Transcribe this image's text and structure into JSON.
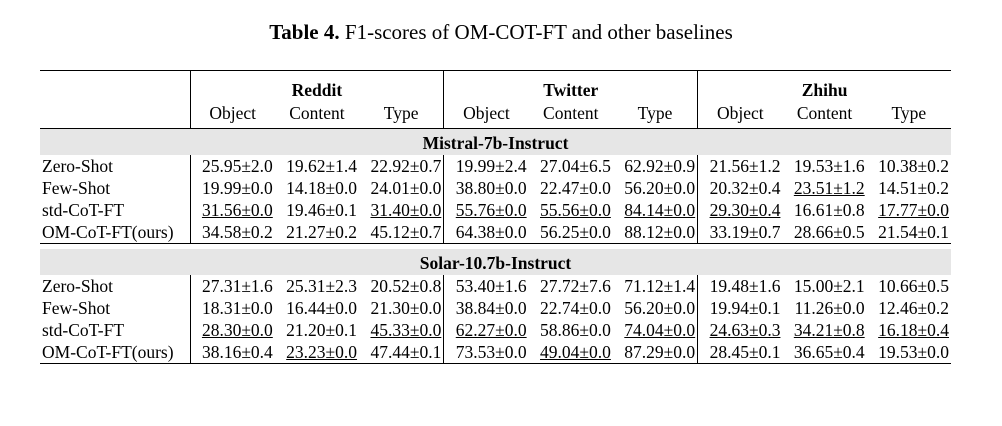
{
  "caption": {
    "label": "Table 4.",
    "text": "F1-scores of OM-COT-FT and other baselines"
  },
  "datasets": [
    "Reddit",
    "Twitter",
    "Zhihu"
  ],
  "metrics": [
    "Object",
    "Content",
    "Type"
  ],
  "sections": [
    {
      "title": "Mistral-7b-Instruct",
      "rows": [
        {
          "method": "Zero-Shot",
          "cells": [
            {
              "v": "25.95±2.0"
            },
            {
              "v": "19.62±1.4"
            },
            {
              "v": "22.92±0.7"
            },
            {
              "v": "19.99±2.4"
            },
            {
              "v": "27.04±6.5"
            },
            {
              "v": "62.92±0.9"
            },
            {
              "v": "21.56±1.2"
            },
            {
              "v": "19.53±1.6"
            },
            {
              "v": "10.38±0.2"
            }
          ]
        },
        {
          "method": "Few-Shot",
          "cells": [
            {
              "v": "19.99±0.0"
            },
            {
              "v": "14.18±0.0"
            },
            {
              "v": "24.01±0.0"
            },
            {
              "v": "38.80±0.0"
            },
            {
              "v": "22.47±0.0"
            },
            {
              "v": "56.20±0.0"
            },
            {
              "v": "20.32±0.4"
            },
            {
              "v": "23.51±1.2",
              "s": "u"
            },
            {
              "v": "14.51±0.2"
            }
          ]
        },
        {
          "method": "std-CoT-FT",
          "cells": [
            {
              "v": "31.56±0.0",
              "s": "u"
            },
            {
              "v": "19.46±0.1"
            },
            {
              "v": "31.40±0.0",
              "s": "u"
            },
            {
              "v": "55.76±0.0",
              "s": "u"
            },
            {
              "v": "55.56±0.0",
              "s": "u"
            },
            {
              "v": "84.14±0.0",
              "s": "u"
            },
            {
              "v": "29.30±0.4",
              "s": "u"
            },
            {
              "v": "16.61±0.8"
            },
            {
              "v": "17.77±0.0",
              "s": "u"
            }
          ]
        },
        {
          "method": "OM-CoT-FT(ours)",
          "cells": [
            {
              "v": "34.58±0.2",
              "s": "b"
            },
            {
              "v": "21.27±0.2",
              "s": "b"
            },
            {
              "v": "45.12±0.7",
              "s": "b"
            },
            {
              "v": "64.38±0.0",
              "s": "b"
            },
            {
              "v": "56.25±0.0",
              "s": "b"
            },
            {
              "v": "88.12±0.0",
              "s": "b"
            },
            {
              "v": "33.19±0.7",
              "s": "b"
            },
            {
              "v": "28.66±0.5",
              "s": "b"
            },
            {
              "v": "21.54±0.1",
              "s": "b"
            }
          ]
        }
      ]
    },
    {
      "title": "Solar-10.7b-Instruct",
      "rows": [
        {
          "method": "Zero-Shot",
          "cells": [
            {
              "v": "27.31±1.6"
            },
            {
              "v": "25.31±2.3",
              "s": "b"
            },
            {
              "v": "20.52±0.8"
            },
            {
              "v": "53.40±1.6"
            },
            {
              "v": "27.72±7.6"
            },
            {
              "v": "71.12±1.4"
            },
            {
              "v": "19.48±1.6"
            },
            {
              "v": "15.00±2.1"
            },
            {
              "v": "10.66±0.5"
            }
          ]
        },
        {
          "method": "Few-Shot",
          "cells": [
            {
              "v": "18.31±0.0"
            },
            {
              "v": "16.44±0.0"
            },
            {
              "v": "21.30±0.0"
            },
            {
              "v": "38.84±0.0"
            },
            {
              "v": "22.74±0.0"
            },
            {
              "v": "56.20±0.0"
            },
            {
              "v": "19.94±0.1"
            },
            {
              "v": "11.26±0.0"
            },
            {
              "v": "12.46±0.2"
            }
          ]
        },
        {
          "method": "std-CoT-FT",
          "cells": [
            {
              "v": "28.30±0.0",
              "s": "u"
            },
            {
              "v": "21.20±0.1"
            },
            {
              "v": "45.33±0.0",
              "s": "u"
            },
            {
              "v": "62.27±0.0",
              "s": "u"
            },
            {
              "v": "58.86±0.0",
              "s": "b"
            },
            {
              "v": "74.04±0.0",
              "s": "u"
            },
            {
              "v": "24.63±0.3",
              "s": "u"
            },
            {
              "v": "34.21±0.8",
              "s": "u"
            },
            {
              "v": "16.18±0.4",
              "s": "u"
            }
          ]
        },
        {
          "method": "OM-CoT-FT(ours)",
          "cells": [
            {
              "v": "38.16±0.4",
              "s": "b"
            },
            {
              "v": "23.23±0.0",
              "s": "u"
            },
            {
              "v": "47.44±0.1",
              "s": "b"
            },
            {
              "v": "73.53±0.0",
              "s": "b"
            },
            {
              "v": "49.04±0.0",
              "s": "u"
            },
            {
              "v": "87.29±0.0",
              "s": "b"
            },
            {
              "v": "28.45±0.1",
              "s": "b"
            },
            {
              "v": "36.65±0.4",
              "s": "b"
            },
            {
              "v": "19.53±0.0",
              "s": "b"
            }
          ]
        }
      ]
    }
  ]
}
